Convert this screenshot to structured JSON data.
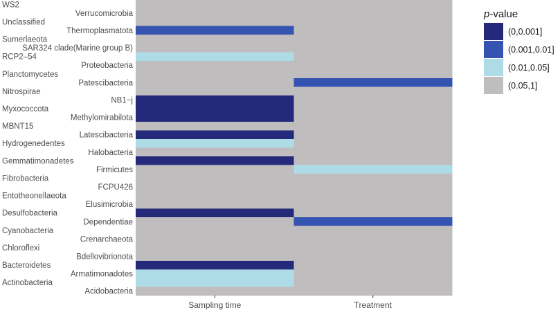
{
  "chart_data": {
    "type": "heatmap",
    "title": "",
    "xlabel": "",
    "ylabel": "",
    "x_categories": [
      "Sampling time",
      "Treatment"
    ],
    "y_categories": [
      "WS2",
      "Verrucomicrobia",
      "Unclassified",
      "Thermoplasmatota",
      "Sumerlaeota",
      "SAR324 clade(Marine group B)",
      "RCP2–54",
      "Proteobacteria",
      "Planctomycetes",
      "Patescibacteria",
      "Nitrospirae",
      "NB1−j",
      "Myxococcota",
      "Methylomirabilota",
      "MBNT15",
      "Latescibacteria",
      "Hydrogenedentes",
      "Halobacteria",
      "Gemmatimonadetes",
      "Firmicutes",
      "Fibrobacteria",
      "FCPU426",
      "Entotheonellaeota",
      "Elusimicrobia",
      "Desulfobacteria",
      "Dependentiae",
      "Cyanobacteria",
      "Crenarchaeota",
      "Chloroflexi",
      "Bdellovibrionota",
      "Bacteroidetes",
      "Armatimonadotes",
      "Actinobacteria",
      "Acidobacteria"
    ],
    "values": [
      [
        "(0.05,1]",
        "(0.05,1]"
      ],
      [
        "(0.05,1]",
        "(0.05,1]"
      ],
      [
        "(0.05,1]",
        "(0.05,1]"
      ],
      [
        "(0.001,0.01]",
        "(0.05,1]"
      ],
      [
        "(0.05,1]",
        "(0.05,1]"
      ],
      [
        "(0.05,1]",
        "(0.05,1]"
      ],
      [
        "(0.01,0.05]",
        "(0.05,1]"
      ],
      [
        "(0.05,1]",
        "(0.05,1]"
      ],
      [
        "(0.05,1]",
        "(0.05,1]"
      ],
      [
        "(0.05,1]",
        "(0.001,0.01]"
      ],
      [
        "(0.05,1]",
        "(0.05,1]"
      ],
      [
        "(0,0.001]",
        "(0.05,1]"
      ],
      [
        "(0,0.001]",
        "(0.05,1]"
      ],
      [
        "(0,0.001]",
        "(0.05,1]"
      ],
      [
        "(0.05,1]",
        "(0.05,1]"
      ],
      [
        "(0,0.001]",
        "(0.05,1]"
      ],
      [
        "(0.01,0.05]",
        "(0.05,1]"
      ],
      [
        "(0.05,1]",
        "(0.05,1]"
      ],
      [
        "(0,0.001]",
        "(0.05,1]"
      ],
      [
        "(0.05,1]",
        "(0.01,0.05]"
      ],
      [
        "(0.05,1]",
        "(0.05,1]"
      ],
      [
        "(0.05,1]",
        "(0.05,1]"
      ],
      [
        "(0.05,1]",
        "(0.05,1]"
      ],
      [
        "(0.05,1]",
        "(0.05,1]"
      ],
      [
        "(0,0.001]",
        "(0.05,1]"
      ],
      [
        "(0.05,1]",
        "(0.001,0.01]"
      ],
      [
        "(0.05,1]",
        "(0.05,1]"
      ],
      [
        "(0.05,1]",
        "(0.05,1]"
      ],
      [
        "(0.05,1]",
        "(0.05,1]"
      ],
      [
        "(0.05,1]",
        "(0.05,1]"
      ],
      [
        "(0,0.001]",
        "(0.05,1]"
      ],
      [
        "(0.01,0.05]",
        "(0.05,1]"
      ],
      [
        "(0.01,0.05]",
        "(0.05,1]"
      ],
      [
        "(0.05,1]",
        "(0.05,1]"
      ]
    ],
    "legend": {
      "title_italic": "p",
      "title_rest": "-value",
      "position": "right",
      "entries": [
        {
          "label": "(0,0.001]",
          "color": "#25297a"
        },
        {
          "label": "(0.001,0.01]",
          "color": "#3553b0"
        },
        {
          "label": "(0.01,0.05]",
          "color": "#aedce6"
        },
        {
          "label": "(0.05,1]",
          "color": "#c0bdbf"
        }
      ]
    }
  }
}
